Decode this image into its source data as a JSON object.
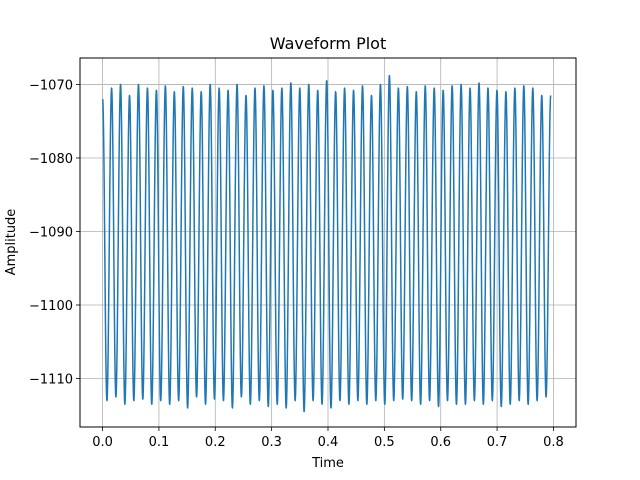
{
  "chart_data": {
    "type": "line",
    "title": "Waveform Plot",
    "xlabel": "Time",
    "ylabel": "Amplitude",
    "xlim": [
      -0.04,
      0.84
    ],
    "ylim": [
      -1116.6,
      -1066.4
    ],
    "grid": true,
    "x_ticks": [
      0.0,
      0.1,
      0.2,
      0.3,
      0.4,
      0.5,
      0.6,
      0.7,
      0.8
    ],
    "x_tick_labels": [
      "0.0",
      "0.1",
      "0.2",
      "0.3",
      "0.4",
      "0.5",
      "0.6",
      "0.7",
      "0.8"
    ],
    "y_ticks": [
      -1110,
      -1100,
      -1090,
      -1080,
      -1070
    ],
    "y_tick_labels": [
      "−1110",
      "−1100",
      "−1090",
      "−1080",
      "−1070"
    ],
    "series": [
      {
        "color": "#1f77b4",
        "signal": {
          "x_start": 0.0,
          "x_end": 0.795,
          "cycles": 50,
          "peaks": [
            -1072.0,
            -1070.5,
            -1070.0,
            -1071.5,
            -1070.0,
            -1070.5,
            -1070.8,
            -1070.2,
            -1071.0,
            -1070.3,
            -1070.5,
            -1071.0,
            -1070.0,
            -1070.5,
            -1070.8,
            -1070.0,
            -1071.5,
            -1070.5,
            -1070.2,
            -1070.8,
            -1070.5,
            -1069.8,
            -1070.5,
            -1070.0,
            -1070.8,
            -1069.5,
            -1071.0,
            -1070.5,
            -1070.8,
            -1070.2,
            -1071.5,
            -1070.0,
            -1068.8,
            -1070.5,
            -1070.3,
            -1071.0,
            -1070.2,
            -1070.5,
            -1070.8,
            -1070.2,
            -1070.0,
            -1070.5,
            -1069.8,
            -1070.5,
            -1070.8,
            -1071.0,
            -1070.5,
            -1070.2,
            -1070.5,
            -1071.5
          ],
          "troughs": [
            -1113.0,
            -1112.5,
            -1113.5,
            -1113.0,
            -1112.8,
            -1113.5,
            -1113.0,
            -1113.5,
            -1113.0,
            -1114.0,
            -1112.5,
            -1113.5,
            -1112.8,
            -1113.0,
            -1114.0,
            -1112.5,
            -1113.5,
            -1113.0,
            -1113.8,
            -1113.5,
            -1114.0,
            -1113.0,
            -1114.5,
            -1113.0,
            -1113.5,
            -1114.0,
            -1113.0,
            -1113.5,
            -1113.0,
            -1113.5,
            -1113.0,
            -1113.5,
            -1113.0,
            -1112.8,
            -1113.0,
            -1113.5,
            -1113.0,
            -1113.8,
            -1113.0,
            -1113.5,
            -1113.5,
            -1113.0,
            -1113.5,
            -1113.0,
            -1113.8,
            -1113.5,
            -1113.0,
            -1113.5,
            -1113.0,
            -1112.5
          ],
          "start_value": -1072.0,
          "end_value": -1071.5
        }
      }
    ]
  }
}
